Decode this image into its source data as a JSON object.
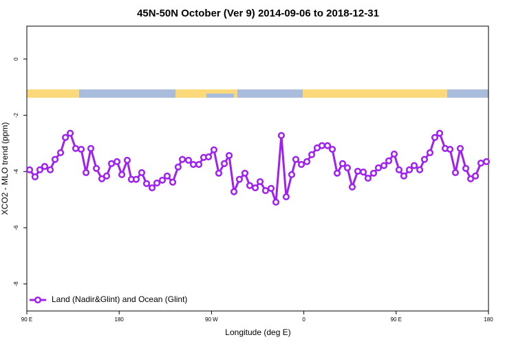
{
  "chart_data": {
    "type": "line",
    "title": "45N-50N October (Ver 9)   2014-09-06 to 2018-12-31",
    "x_label": "Longitude (deg E)",
    "y_label": "XCO2 - MLO trend (ppm)",
    "xlim": [
      90,
      540
    ],
    "ylim": [
      -8.96,
      1.17
    ],
    "xticks": [
      {
        "value": 90,
        "label": "90 E"
      },
      180,
      {
        "value": 270,
        "label": "90 W"
      },
      {
        "value": 360,
        "label": "0"
      },
      {
        "value": 450,
        "label": "90 E"
      },
      {
        "value": 540,
        "label": "180"
      }
    ],
    "yticks": [
      0,
      -2,
      -4,
      -6,
      -8
    ],
    "legend": "bottom-left",
    "series": [
      {
        "name": "Land (Nadir&Glint) and Ocean (Glint)",
        "color": "#a020f0",
        "x": [
          92.7,
          98.0,
          102.7,
          107.4,
          112.8,
          117.5,
          122.9,
          127.6,
          132.3,
          137.6,
          143.0,
          147.7,
          152.4,
          157.8,
          163.1,
          167.8,
          172.5,
          177.9,
          182.6,
          187.9,
          191.9,
          196.6,
          202.0,
          206.7,
          212.1,
          216.8,
          222.1,
          226.8,
          232.2,
          237.5,
          241.6,
          247.6,
          252.3,
          257.7,
          262.4,
          267.1,
          272.4,
          277.1,
          282.5,
          287.2,
          291.9,
          297.2,
          302.6,
          307.3,
          312.7,
          317.4,
          322.7,
          328.1,
          332.8,
          338.1,
          342.8,
          348.2,
          352.2,
          357.6,
          363.0,
          367.7,
          373.0,
          377.7,
          383.1,
          387.8,
          392.5,
          397.8,
          402.5,
          407.2,
          412.6,
          418.0,
          422.6,
          428.0,
          432.7,
          438.1,
          442.8,
          448.1,
          452.8,
          457.5,
          462.9,
          467.6,
          473.0,
          477.6,
          483.0,
          487.7,
          492.4,
          497.8,
          502.5,
          507.8,
          512.5,
          517.9,
          522.6,
          527.3,
          532.6,
          538.0
        ],
        "values": [
          -3.94,
          -4.19,
          -3.94,
          -3.82,
          -3.94,
          -3.57,
          -3.33,
          -2.79,
          -2.64,
          -3.18,
          -3.21,
          -4.04,
          -3.18,
          -3.89,
          -4.26,
          -4.16,
          -3.72,
          -3.65,
          -4.11,
          -3.6,
          -4.28,
          -4.28,
          -4.04,
          -4.43,
          -4.58,
          -4.41,
          -4.31,
          -4.16,
          -4.38,
          -3.84,
          -3.57,
          -3.6,
          -3.75,
          -3.75,
          -3.5,
          -3.48,
          -3.23,
          -4.06,
          -3.72,
          -3.43,
          -4.72,
          -4.28,
          -4.06,
          -4.5,
          -4.58,
          -4.36,
          -4.68,
          -4.6,
          -5.09,
          -2.72,
          -4.9,
          -4.11,
          -3.57,
          -3.75,
          -3.65,
          -3.4,
          -3.16,
          -3.08,
          -3.08,
          -3.21,
          -4.06,
          -3.72,
          -3.87,
          -4.55,
          -3.99,
          -4.02,
          -4.24,
          -4.06,
          -3.87,
          -3.79,
          -3.62,
          -3.38,
          -3.94,
          -4.16,
          -3.94,
          -3.79,
          -3.94,
          -3.57,
          -3.33,
          -2.79,
          -2.64,
          -3.18,
          -3.21,
          -4.04,
          -3.18,
          -3.89,
          -4.26,
          -4.16,
          -3.7,
          -3.65
        ]
      }
    ]
  }
}
